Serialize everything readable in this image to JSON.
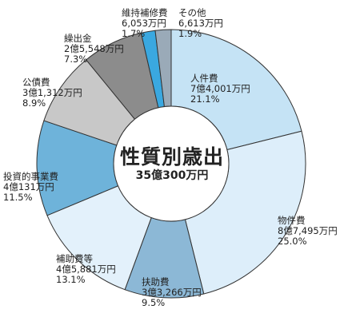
{
  "chart_data": {
    "type": "pie",
    "title": "性質別歳出",
    "total": "35億300万円",
    "slices": [
      {
        "key": "jinkenhi",
        "name": "人件費",
        "amount": "7億4,001万円",
        "percent": 21.1,
        "percent_label": "21.1%",
        "color": "#c5e3f5"
      },
      {
        "key": "bukkenhi",
        "name": "物件費",
        "amount": "8億7,495万円",
        "percent": 25.0,
        "percent_label": "25.0%",
        "color": "#ddeefa"
      },
      {
        "key": "fujohi",
        "name": "扶助費",
        "amount": "3億3,266万円",
        "percent": 9.5,
        "percent_label": "9.5%",
        "color": "#8cb8d6"
      },
      {
        "key": "hojohi",
        "name": "補助費等",
        "amount": "4億5,881万円",
        "percent": 13.1,
        "percent_label": "13.1%",
        "color": "#e3f1fb"
      },
      {
        "key": "toushi",
        "name": "投資的事業費",
        "amount": "4億131万円",
        "percent": 11.5,
        "percent_label": "11.5%",
        "color": "#6eb3da"
      },
      {
        "key": "kousaihi",
        "name": "公債費",
        "amount": "3億1,312万円",
        "percent": 8.9,
        "percent_label": "8.9%",
        "color": "#c8c8c8"
      },
      {
        "key": "kuridashi",
        "name": "繰出金",
        "amount": "2億5,548万円",
        "percent": 7.3,
        "percent_label": "7.3%",
        "color": "#8c8c8c"
      },
      {
        "key": "iji",
        "name": "維持補修費",
        "amount": "6,053万円",
        "percent": 1.7,
        "percent_label": "1.7%",
        "color": "#3aa8e0"
      },
      {
        "key": "sonota",
        "name": "その他",
        "amount": "6,613万円",
        "percent": 1.9,
        "percent_label": "1.9%",
        "color": "#9aaab8"
      }
    ]
  }
}
